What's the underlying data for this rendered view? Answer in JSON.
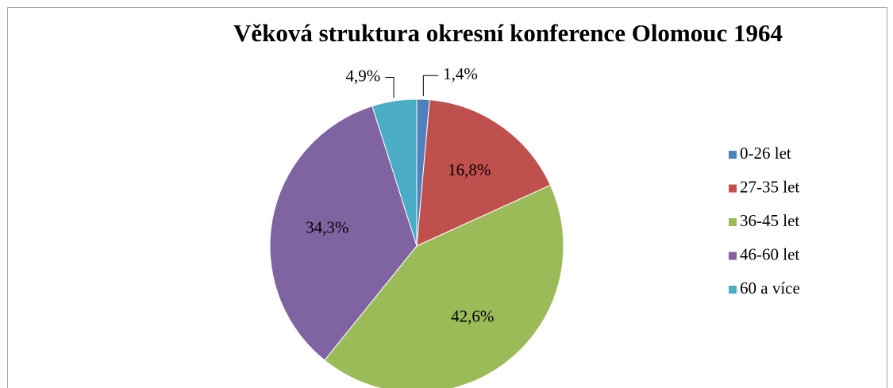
{
  "chart_data": {
    "type": "pie",
    "title": "Věková struktura okresní konference Olomouc 1964",
    "categories": [
      "0-26 let",
      "27-35 let",
      "36-45 let",
      "46-60 let",
      "60 a více"
    ],
    "values": [
      1.4,
      16.8,
      42.6,
      34.3,
      4.9
    ],
    "value_labels": [
      "1,4%",
      "16,8%",
      "42,6%",
      "34,3%",
      "4,9%"
    ],
    "colors": [
      "#4f81bd",
      "#c0504d",
      "#9bbb59",
      "#8064a2",
      "#4bacc6"
    ],
    "legend": "right"
  }
}
